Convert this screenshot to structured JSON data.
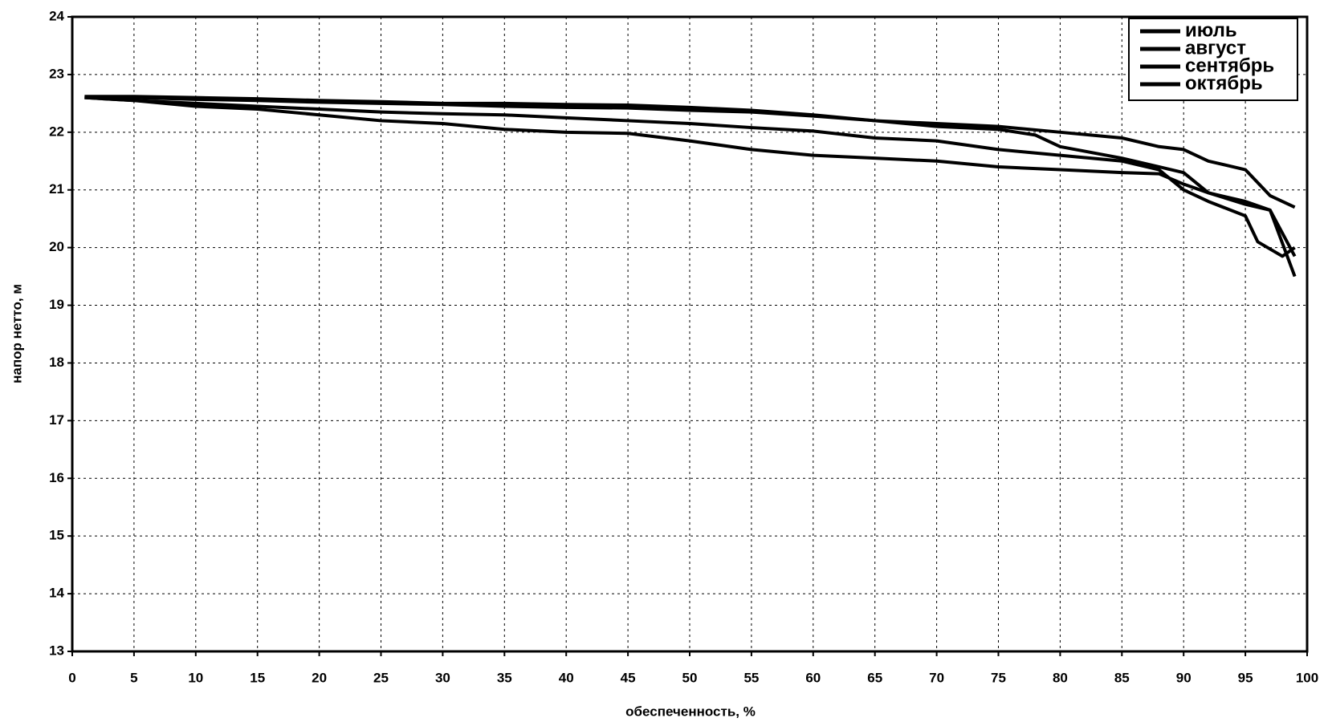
{
  "chart_data": {
    "type": "line",
    "x_label": "обеспеченность, %",
    "y_label": "напор нетто, м",
    "xlim": [
      0,
      100
    ],
    "ylim": [
      13,
      24
    ],
    "xticks": [
      0,
      5,
      10,
      15,
      20,
      25,
      30,
      35,
      40,
      45,
      50,
      55,
      60,
      65,
      70,
      75,
      80,
      85,
      90,
      95,
      100
    ],
    "yticks": [
      13,
      14,
      15,
      16,
      17,
      18,
      19,
      20,
      21,
      22,
      23,
      24
    ],
    "grid": true,
    "legend": "top-right",
    "series": [
      {
        "name": "июль",
        "color": "#000000",
        "x": [
          1,
          5,
          10,
          15,
          20,
          25,
          30,
          35,
          40,
          45,
          50,
          55,
          60,
          65,
          70,
          75,
          80,
          85,
          88,
          90,
          92,
          95,
          97,
          99
        ],
        "values": [
          22.62,
          22.62,
          22.6,
          22.58,
          22.55,
          22.53,
          22.5,
          22.5,
          22.48,
          22.47,
          22.43,
          22.38,
          22.3,
          22.2,
          22.15,
          22.1,
          22.0,
          21.9,
          21.75,
          21.7,
          21.5,
          21.35,
          20.9,
          20.7
        ]
      },
      {
        "name": "август",
        "color": "#000000",
        "x": [
          1,
          5,
          10,
          15,
          20,
          25,
          30,
          35,
          40,
          45,
          50,
          55,
          60,
          65,
          70,
          75,
          78,
          80,
          85,
          88,
          90,
          92,
          95,
          97,
          99
        ],
        "values": [
          22.6,
          22.6,
          22.57,
          22.55,
          22.52,
          22.5,
          22.48,
          22.45,
          22.43,
          22.42,
          22.38,
          22.35,
          22.28,
          22.2,
          22.1,
          22.05,
          21.95,
          21.75,
          21.55,
          21.4,
          21.3,
          20.95,
          20.75,
          20.65,
          19.5
        ]
      },
      {
        "name": "сентябрь",
        "color": "#000000",
        "x": [
          1,
          5,
          10,
          15,
          20,
          25,
          30,
          35,
          40,
          45,
          50,
          55,
          60,
          65,
          70,
          75,
          80,
          85,
          88,
          90,
          92,
          95,
          96,
          98,
          99
        ],
        "values": [
          22.6,
          22.55,
          22.5,
          22.45,
          22.4,
          22.35,
          22.32,
          22.3,
          22.25,
          22.2,
          22.15,
          22.08,
          22.02,
          21.9,
          21.85,
          21.7,
          21.6,
          21.5,
          21.35,
          21.0,
          20.8,
          20.55,
          20.1,
          19.85,
          20.0
        ]
      },
      {
        "name": "октябрь",
        "color": "#000000",
        "x": [
          1,
          5,
          10,
          15,
          20,
          25,
          30,
          35,
          40,
          45,
          50,
          55,
          60,
          65,
          70,
          75,
          80,
          85,
          88,
          90,
          92,
          95,
          97,
          99
        ],
        "values": [
          22.6,
          22.55,
          22.45,
          22.4,
          22.3,
          22.2,
          22.15,
          22.05,
          22.0,
          21.98,
          21.85,
          21.7,
          21.6,
          21.55,
          21.5,
          21.4,
          21.35,
          21.3,
          21.28,
          21.1,
          20.95,
          20.8,
          20.65,
          19.85
        ]
      }
    ]
  }
}
